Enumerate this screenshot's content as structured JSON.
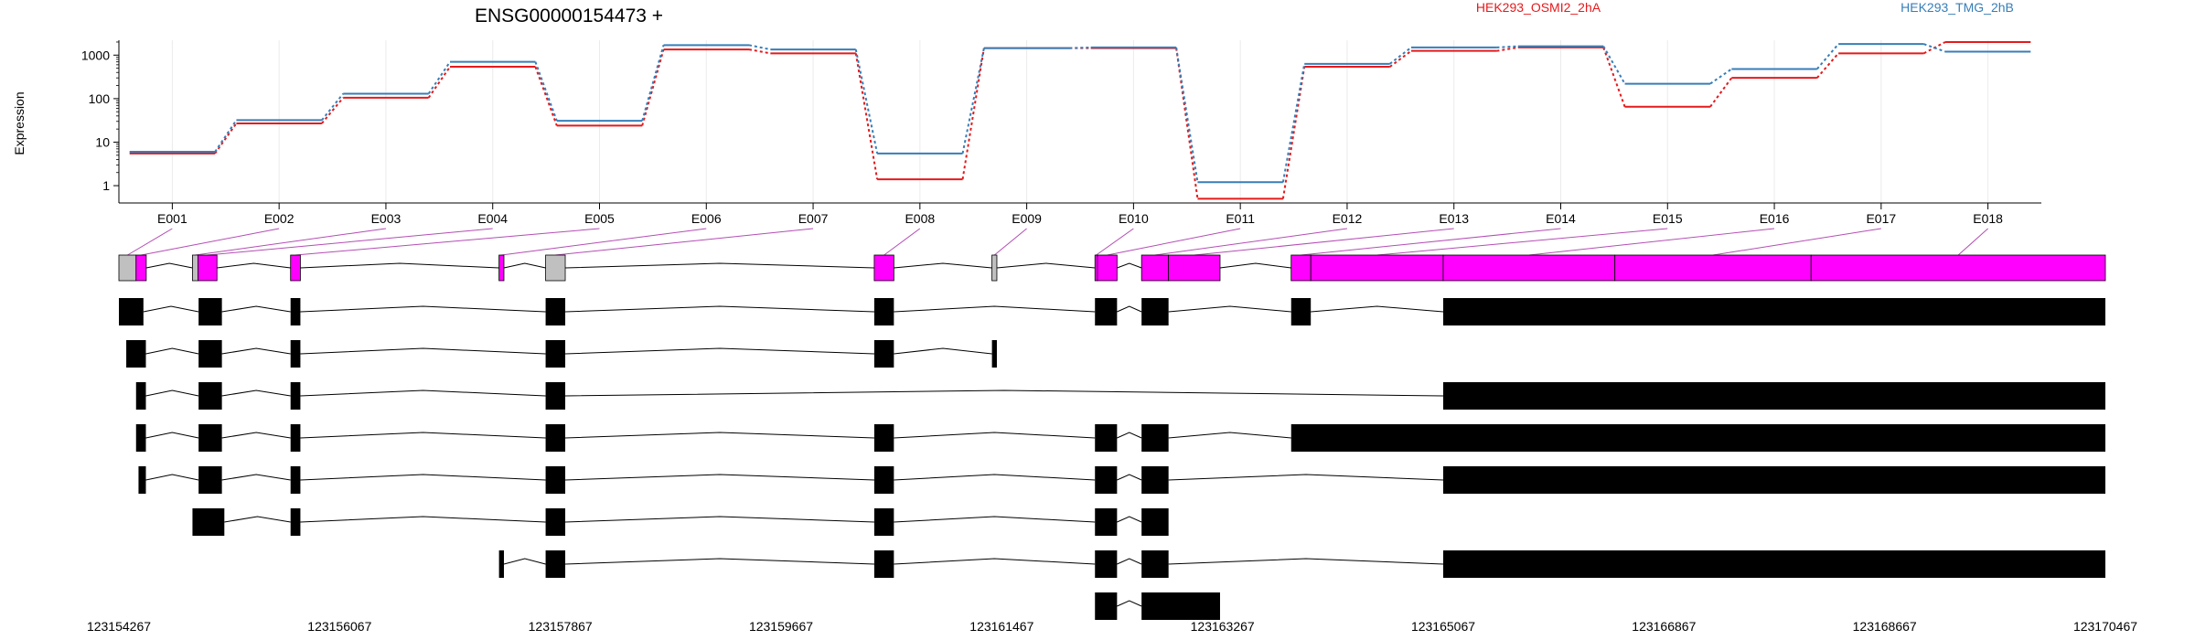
{
  "chart_data": {
    "type": "line",
    "title": "ENSG00000154473 +",
    "ylabel": "Expression",
    "yscale": "log",
    "ylim": [
      0.4,
      2200
    ],
    "yticks": [
      1,
      10,
      100,
      1000
    ],
    "ytick_labels": [
      "1",
      "10",
      "100",
      "1000"
    ],
    "grid": true,
    "legend_placement": "top-right",
    "categories": [
      "E001",
      "E002",
      "E003",
      "E004",
      "E005",
      "E006",
      "E007",
      "E008",
      "E009",
      "E010",
      "E011",
      "E012",
      "E013",
      "E014",
      "E015",
      "E016",
      "E017",
      "E018"
    ],
    "series": [
      {
        "name": "HEK293_OSMI2_2hA",
        "color": "#e41a1c",
        "values": [
          5.5,
          27,
          105,
          540,
          24,
          1350,
          1100,
          1.4,
          1450,
          1450,
          0.5,
          540,
          1250,
          1500,
          65,
          300,
          1100,
          2000
        ]
      },
      {
        "name": "HEK293_TMG_2hB",
        "color": "#377eb8",
        "values": [
          6,
          32,
          130,
          700,
          31,
          1700,
          1350,
          5.5,
          1450,
          1500,
          1.2,
          630,
          1500,
          1600,
          220,
          480,
          1800,
          1200
        ]
      }
    ],
    "gene_model": {
      "coord_labels": [
        "123154267",
        "123156067",
        "123157867",
        "123159667",
        "123161467",
        "123163267",
        "123165067",
        "123166867",
        "123168667",
        "123170467"
      ],
      "genomic_range": [
        123154267,
        123170467
      ],
      "exon_bins": [
        {
          "id": "E001",
          "start": 123154267,
          "end": 123154407,
          "color": "#c0c0c0"
        },
        {
          "id": "E002",
          "start": 123154407,
          "end": 123154490,
          "color": "#ff00ff"
        },
        {
          "id": "E003",
          "start": 123154867,
          "end": 123154912,
          "color": "#c0c0c0"
        },
        {
          "id": "E004",
          "start": 123154912,
          "end": 123155067,
          "color": "#ff00ff"
        },
        {
          "id": "E005",
          "start": 123155667,
          "end": 123155747,
          "color": "#ff00ff"
        },
        {
          "id": "E006",
          "start": 123157367,
          "end": 123157407,
          "color": "#ff00ff"
        },
        {
          "id": "E007",
          "start": 123157747,
          "end": 123157907,
          "color": "#c0c0c0"
        },
        {
          "id": "E008",
          "start": 123160427,
          "end": 123160587,
          "color": "#ff00ff"
        },
        {
          "id": "E009",
          "start": 123161387,
          "end": 123161427,
          "color": "#c0c0c0"
        },
        {
          "id": "E010",
          "start": 123162227,
          "end": 123162247,
          "color": "#ff00ff"
        },
        {
          "id": "E011",
          "start": 123162247,
          "end": 123162407,
          "color": "#ff00ff"
        },
        {
          "id": "E012",
          "start": 123162607,
          "end": 123162827,
          "color": "#ff00ff"
        },
        {
          "id": "E013",
          "start": 123162827,
          "end": 123163247,
          "color": "#ff00ff"
        },
        {
          "id": "E014",
          "start": 123163827,
          "end": 123163987,
          "color": "#ff00ff"
        },
        {
          "id": "E015",
          "start": 123163987,
          "end": 123165067,
          "color": "#ff00ff"
        },
        {
          "id": "E016",
          "start": 123165067,
          "end": 123166467,
          "color": "#ff00ff"
        },
        {
          "id": "E017",
          "start": 123166467,
          "end": 123168067,
          "color": "#ff00ff"
        },
        {
          "id": "E018",
          "start": 123168067,
          "end": 123170467,
          "color": "#ff00ff"
        }
      ],
      "transcripts": [
        [
          [
            123154267,
            123154467
          ],
          [
            123154917,
            123155107
          ],
          [
            123155667,
            123155747
          ],
          [
            123157747,
            123157907
          ],
          [
            123160427,
            123160587
          ],
          [
            123162227,
            123162407
          ],
          [
            123162607,
            123162827
          ],
          [
            123163827,
            123163987
          ],
          [
            123165067,
            123170467
          ]
        ],
        [
          [
            123154327,
            123154487
          ],
          [
            123154917,
            123155107
          ],
          [
            123155667,
            123155747
          ],
          [
            123157747,
            123157907
          ],
          [
            123160427,
            123160587
          ],
          [
            123161387,
            123161427
          ]
        ],
        [
          [
            123154407,
            123154487
          ],
          [
            123154917,
            123155107
          ],
          [
            123155667,
            123155747
          ],
          [
            123157747,
            123157907
          ],
          [
            123165067,
            123170467
          ]
        ],
        [
          [
            123154407,
            123154487
          ],
          [
            123154917,
            123155107
          ],
          [
            123155667,
            123155747
          ],
          [
            123157747,
            123157907
          ],
          [
            123160427,
            123160587
          ],
          [
            123162227,
            123162407
          ],
          [
            123162607,
            123162827
          ],
          [
            123163827,
            123170467
          ]
        ],
        [
          [
            123154427,
            123154487
          ],
          [
            123154917,
            123155107
          ],
          [
            123155667,
            123155747
          ],
          [
            123157747,
            123157907
          ],
          [
            123160427,
            123160587
          ],
          [
            123162227,
            123162407
          ],
          [
            123162607,
            123162827
          ],
          [
            123165067,
            123170467
          ]
        ],
        [
          [
            123154867,
            123155127
          ],
          [
            123155667,
            123155747
          ],
          [
            123157747,
            123157907
          ],
          [
            123160427,
            123160587
          ],
          [
            123162227,
            123162407
          ],
          [
            123162607,
            123162827
          ]
        ],
        [
          [
            123157367,
            123157407
          ],
          [
            123157747,
            123157907
          ],
          [
            123160427,
            123160587
          ],
          [
            123162227,
            123162407
          ],
          [
            123162607,
            123162827
          ],
          [
            123165067,
            123170467
          ]
        ],
        [
          [
            123162227,
            123162407
          ],
          [
            123162607,
            123163247
          ]
        ]
      ]
    }
  }
}
